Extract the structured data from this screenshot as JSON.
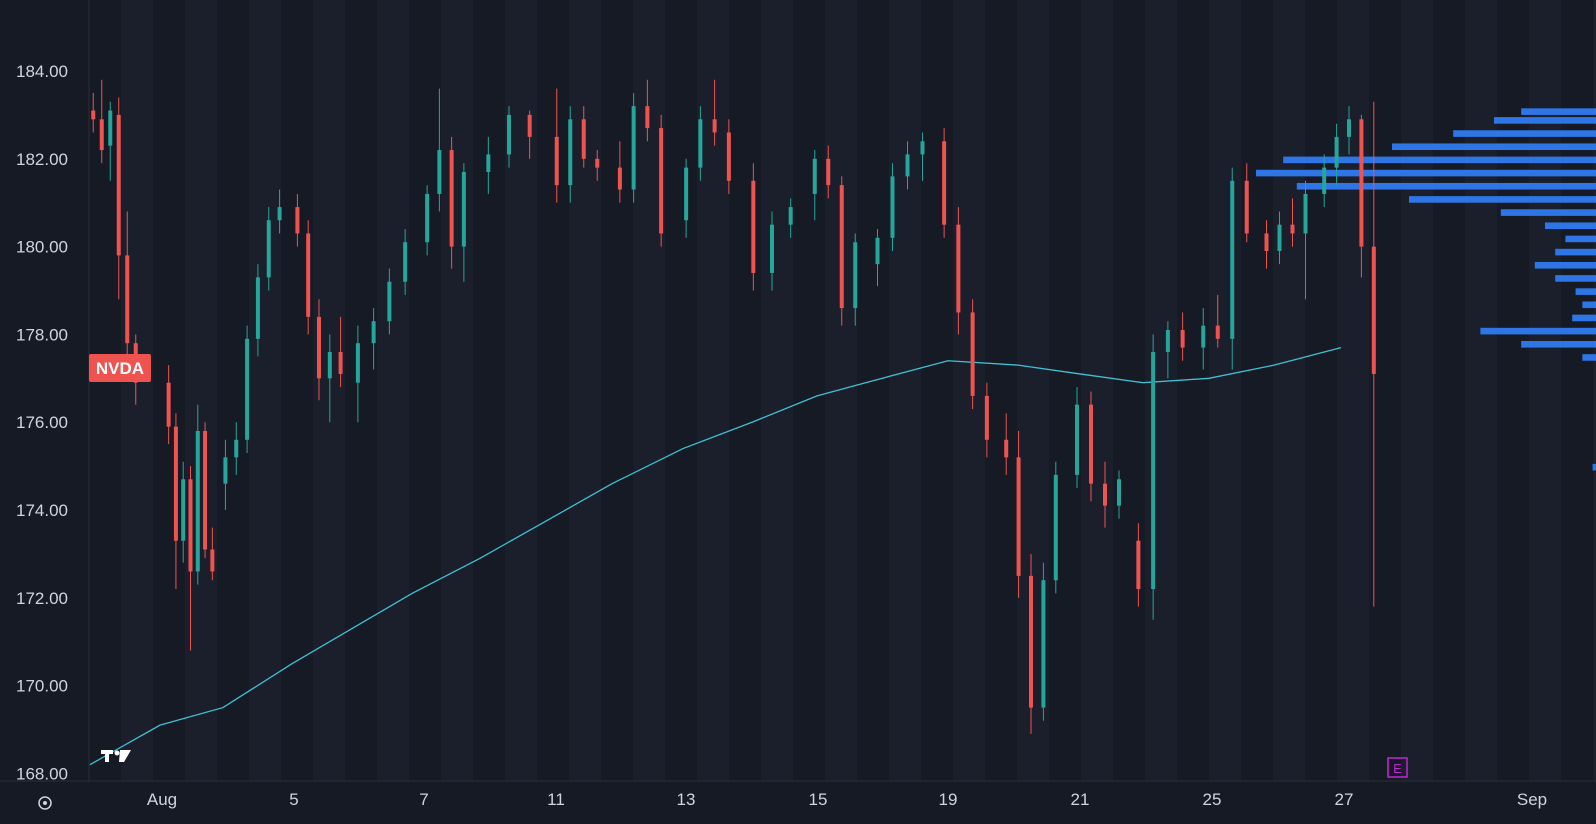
{
  "colors": {
    "background": "#161a25",
    "up": "#26a69a",
    "down": "#ef5350",
    "ma_line": "#3fc1d4",
    "volume_profile": "#2f7bf0",
    "earnings_marker": "#c026d3",
    "ticker_badge": "#ef5350",
    "grid_band": "#1b1f2b"
  },
  "ui": {
    "settings_icon": "gear-icon",
    "tradingview_logo": "tradingview-logo-icon"
  },
  "chart_data": {
    "type": "candlestick",
    "symbol": "NVDA",
    "y_axis": {
      "ticks": [
        "184.00",
        "182.00",
        "180.00",
        "178.00",
        "176.00",
        "174.00",
        "172.00",
        "170.00",
        "168.00"
      ],
      "range": [
        167.85,
        185.3
      ]
    },
    "x_axis": {
      "ticks": [
        "Aug",
        "5",
        "7",
        "11",
        "13",
        "15",
        "19",
        "21",
        "25",
        "27",
        "Sep"
      ]
    },
    "earnings_marker": "E",
    "candles_ohlc_by_session": [
      {
        "session": "Jul 31",
        "ohlc": [
          [
            183.1,
            183.5,
            182.6,
            182.9
          ],
          [
            182.9,
            183.8,
            181.9,
            182.2
          ],
          [
            182.3,
            183.3,
            181.5,
            183.1
          ],
          [
            183.0,
            183.4,
            178.8,
            179.8
          ],
          [
            179.8,
            180.8,
            177.5,
            177.8
          ],
          [
            177.8,
            178.0,
            176.4,
            176.9
          ]
        ]
      },
      {
        "session": "Aug 1",
        "ohlc": [
          [
            176.9,
            177.3,
            175.5,
            175.9
          ],
          [
            175.9,
            176.2,
            172.2,
            173.3
          ],
          [
            173.3,
            175.1,
            172.8,
            174.7
          ],
          [
            174.7,
            175.0,
            170.8,
            172.6
          ],
          [
            172.6,
            176.4,
            172.3,
            175.8
          ],
          [
            175.8,
            176.0,
            172.9,
            173.1
          ],
          [
            173.1,
            173.6,
            172.4,
            172.6
          ]
        ]
      },
      {
        "session": "Aug 4",
        "ohlc": [
          [
            174.6,
            175.6,
            174.0,
            175.2
          ],
          [
            175.2,
            176.0,
            174.8,
            175.6
          ],
          [
            175.6,
            178.2,
            175.3,
            177.9
          ],
          [
            177.9,
            179.6,
            177.5,
            179.3
          ],
          [
            179.3,
            180.9,
            179.0,
            180.6
          ],
          [
            180.6,
            181.3,
            180.3,
            180.9
          ]
        ]
      },
      {
        "session": "Aug 5",
        "ohlc": [
          [
            180.9,
            181.2,
            180.0,
            180.3
          ],
          [
            180.3,
            180.6,
            178.0,
            178.4
          ],
          [
            178.4,
            178.8,
            176.5,
            177.0
          ],
          [
            177.0,
            178.0,
            176.0,
            177.6
          ],
          [
            177.6,
            178.4,
            176.8,
            177.1
          ]
        ]
      },
      {
        "session": "Aug 6",
        "ohlc": [
          [
            176.9,
            178.2,
            176.0,
            177.8
          ],
          [
            177.8,
            178.6,
            177.2,
            178.3
          ],
          [
            178.3,
            179.5,
            178.0,
            179.2
          ],
          [
            179.2,
            180.4,
            178.9,
            180.1
          ]
        ]
      },
      {
        "session": "Aug 7",
        "ohlc": [
          [
            180.1,
            181.4,
            179.8,
            181.2
          ],
          [
            181.2,
            183.6,
            180.8,
            182.2
          ],
          [
            182.2,
            182.5,
            179.5,
            180.0
          ],
          [
            180.0,
            181.9,
            179.2,
            181.7
          ]
        ]
      },
      {
        "session": "Aug 8",
        "ohlc": [
          [
            181.7,
            182.5,
            181.2,
            182.1
          ],
          [
            182.1,
            183.2,
            181.8,
            183.0
          ],
          [
            183.0,
            183.1,
            182.0,
            182.5
          ]
        ]
      },
      {
        "session": "Aug 11",
        "ohlc": [
          [
            182.5,
            183.6,
            181.0,
            181.4
          ],
          [
            181.4,
            183.2,
            181.0,
            182.9
          ],
          [
            182.9,
            183.2,
            181.8,
            182.0
          ],
          [
            182.0,
            182.2,
            181.5,
            181.8
          ]
        ]
      },
      {
        "session": "Aug 12",
        "ohlc": [
          [
            181.8,
            182.4,
            181.0,
            181.3
          ],
          [
            181.3,
            183.5,
            181.0,
            183.2
          ],
          [
            183.2,
            183.8,
            182.4,
            182.7
          ],
          [
            182.7,
            183.0,
            180.0,
            180.3
          ]
        ]
      },
      {
        "session": "Aug 13",
        "ohlc": [
          [
            180.6,
            182.0,
            180.2,
            181.8
          ],
          [
            181.8,
            183.2,
            181.5,
            182.9
          ],
          [
            182.9,
            183.8,
            182.3,
            182.6
          ],
          [
            182.6,
            182.9,
            181.2,
            181.5
          ]
        ]
      },
      {
        "session": "Aug 14",
        "ohlc": [
          [
            181.5,
            181.9,
            179.0,
            179.4
          ],
          [
            179.4,
            180.8,
            179.0,
            180.5
          ],
          [
            180.5,
            181.1,
            180.2,
            180.9
          ]
        ]
      },
      {
        "session": "Aug 15",
        "ohlc": [
          [
            181.2,
            182.2,
            180.6,
            182.0
          ],
          [
            182.0,
            182.3,
            181.1,
            181.4
          ],
          [
            181.4,
            181.6,
            178.2,
            178.6
          ],
          [
            178.6,
            180.3,
            178.2,
            180.1
          ]
        ]
      },
      {
        "session": "Aug 18",
        "ohlc": [
          [
            179.6,
            180.4,
            179.1,
            180.2
          ],
          [
            180.2,
            181.9,
            179.9,
            181.6
          ],
          [
            181.6,
            182.4,
            181.3,
            182.1
          ],
          [
            182.1,
            182.6,
            181.5,
            182.4
          ]
        ]
      },
      {
        "session": "Aug 19",
        "ohlc": [
          [
            182.4,
            182.7,
            180.2,
            180.5
          ],
          [
            180.5,
            180.9,
            178.0,
            178.5
          ],
          [
            178.5,
            178.8,
            176.3,
            176.6
          ],
          [
            176.6,
            176.9,
            175.2,
            175.6
          ]
        ]
      },
      {
        "session": "Aug 20",
        "ohlc": [
          [
            175.6,
            176.2,
            174.8,
            175.2
          ],
          [
            175.2,
            175.8,
            172.0,
            172.5
          ],
          [
            172.5,
            173.0,
            168.9,
            169.5
          ],
          [
            169.5,
            172.8,
            169.2,
            172.4
          ],
          [
            172.4,
            175.1,
            172.1,
            174.8
          ]
        ]
      },
      {
        "session": "Aug 21",
        "ohlc": [
          [
            174.8,
            176.8,
            174.5,
            176.4
          ],
          [
            176.4,
            176.7,
            174.2,
            174.6
          ],
          [
            174.6,
            175.1,
            173.6,
            174.1
          ],
          [
            174.1,
            174.9,
            173.8,
            174.7
          ]
        ]
      },
      {
        "session": "Aug 22",
        "ohlc": [
          [
            173.3,
            173.7,
            171.8,
            172.2
          ],
          [
            172.2,
            178.0,
            171.5,
            177.6
          ],
          [
            177.6,
            178.3,
            177.0,
            178.1
          ],
          [
            178.1,
            178.5,
            177.4,
            177.7
          ]
        ]
      },
      {
        "session": "Aug 25",
        "ohlc": [
          [
            177.7,
            178.6,
            177.2,
            178.2
          ],
          [
            178.2,
            178.9,
            177.7,
            177.9
          ],
          [
            177.9,
            181.8,
            177.2,
            181.5
          ],
          [
            181.5,
            181.9,
            180.1,
            180.3
          ]
        ]
      },
      {
        "session": "Aug 26",
        "ohlc": [
          [
            180.3,
            180.6,
            179.5,
            179.9
          ],
          [
            179.9,
            180.8,
            179.6,
            180.5
          ],
          [
            180.5,
            181.1,
            180.0,
            180.3
          ],
          [
            180.3,
            181.5,
            178.8,
            181.2
          ]
        ]
      },
      {
        "session": "Aug 27",
        "ohlc": [
          [
            181.2,
            182.1,
            180.9,
            181.8
          ],
          [
            181.8,
            182.8,
            181.4,
            182.5
          ],
          [
            182.5,
            183.2,
            182.1,
            182.9
          ],
          [
            182.9,
            183.0,
            179.3,
            180.0
          ],
          [
            180.0,
            183.3,
            171.8,
            177.1
          ]
        ]
      }
    ],
    "moving_average": [
      [
        "Jul 31",
        168.2
      ],
      [
        "Aug 1",
        169.1
      ],
      [
        "Aug 4",
        169.5
      ],
      [
        "Aug 5",
        170.5
      ],
      [
        "Aug 6",
        171.3
      ],
      [
        "Aug 7",
        172.1
      ],
      [
        "Aug 8",
        172.9
      ],
      [
        "Aug 11",
        173.8
      ],
      [
        "Aug 12",
        174.6
      ],
      [
        "Aug 13",
        175.4
      ],
      [
        "Aug 14",
        176.0
      ],
      [
        "Aug 15",
        176.6
      ],
      [
        "Aug 18",
        177.0
      ],
      [
        "Aug 19",
        177.4
      ],
      [
        "Aug 20",
        177.3
      ],
      [
        "Aug 21",
        177.1
      ],
      [
        "Aug 22",
        176.9
      ],
      [
        "Aug 25",
        177.0
      ],
      [
        "Aug 26",
        177.3
      ],
      [
        "Aug 27",
        177.7
      ]
    ],
    "volume_profile": [
      [
        183.0,
        0.22
      ],
      [
        182.8,
        0.3
      ],
      [
        182.5,
        0.42
      ],
      [
        182.2,
        0.6
      ],
      [
        181.9,
        0.92
      ],
      [
        181.6,
        1.0
      ],
      [
        181.3,
        0.88
      ],
      [
        181.0,
        0.55
      ],
      [
        180.7,
        0.28
      ],
      [
        180.4,
        0.15
      ],
      [
        180.1,
        0.09
      ],
      [
        179.8,
        0.12
      ],
      [
        179.5,
        0.18
      ],
      [
        179.2,
        0.12
      ],
      [
        178.9,
        0.06
      ],
      [
        178.6,
        0.04
      ],
      [
        178.3,
        0.07
      ],
      [
        178.0,
        0.34
      ],
      [
        177.7,
        0.22
      ],
      [
        177.4,
        0.04
      ],
      [
        177.1,
        0.0
      ],
      [
        174.9,
        0.01
      ]
    ]
  }
}
